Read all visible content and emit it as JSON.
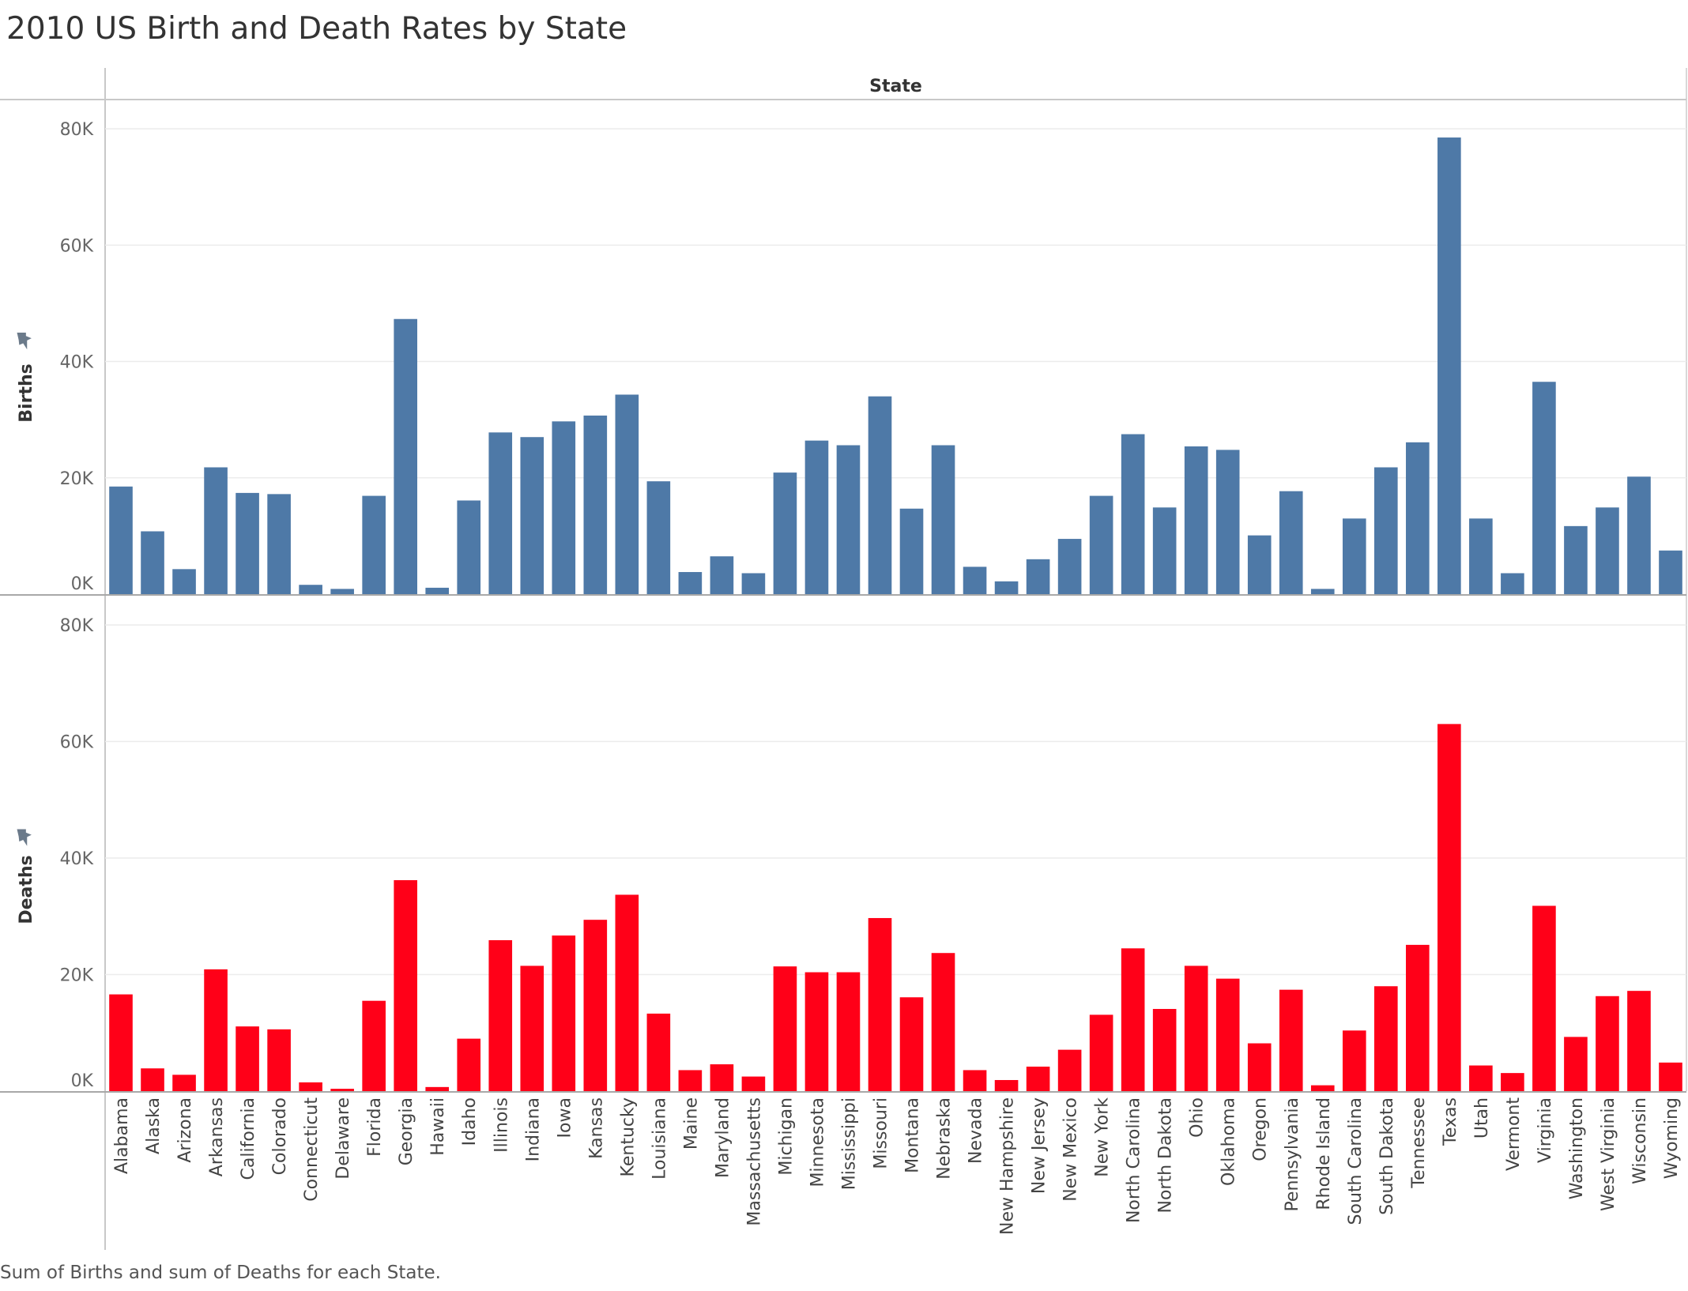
{
  "title": "2010 US Birth and Death Rates by State",
  "caption": "Sum of Births and sum of Deaths for each State.",
  "colors": {
    "births": "#4e79a7",
    "deaths": "#ff0018",
    "pin": "#6b7a8a"
  },
  "icons": {
    "pin": "pin-icon"
  },
  "chart_data": {
    "type": "bar",
    "header": "State",
    "categories": [
      "Alabama",
      "Alaska",
      "Arizona",
      "Arkansas",
      "California",
      "Colorado",
      "Connecticut",
      "Delaware",
      "Florida",
      "Georgia",
      "Hawaii",
      "Idaho",
      "Illinois",
      "Indiana",
      "Iowa",
      "Kansas",
      "Kentucky",
      "Louisiana",
      "Maine",
      "Maryland",
      "Massachusetts",
      "Michigan",
      "Minnesota",
      "Mississippi",
      "Missouri",
      "Montana",
      "Nebraska",
      "Nevada",
      "New Hampshire",
      "New Jersey",
      "New Mexico",
      "New York",
      "North Carolina",
      "North Dakota",
      "Ohio",
      "Oklahoma",
      "Oregon",
      "Pennsylvania",
      "Rhode Island",
      "South Carolina",
      "South Dakota",
      "Tennessee",
      "Texas",
      "Utah",
      "Vermont",
      "Virginia",
      "Washington",
      "West Virginia",
      "Wisconsin",
      "Wyoming"
    ],
    "series": [
      {
        "name": "Births",
        "color": "#4e79a7",
        "values": [
          18500,
          10800,
          4300,
          21800,
          17400,
          17200,
          1600,
          900,
          16900,
          47300,
          1100,
          16100,
          27800,
          27000,
          29700,
          30700,
          34300,
          19400,
          3800,
          6500,
          3600,
          20900,
          26400,
          25600,
          34000,
          14700,
          25600,
          4700,
          2200,
          6000,
          9500,
          16900,
          27500,
          14900,
          25400,
          24800,
          10100,
          17700,
          900,
          13000,
          21800,
          26100,
          78500,
          13000,
          3600,
          36500,
          11700,
          14900,
          20200,
          7500
        ]
      },
      {
        "name": "Deaths",
        "color": "#ff0018",
        "values": [
          16600,
          3900,
          2800,
          20900,
          11100,
          10600,
          1500,
          400,
          15500,
          36200,
          700,
          9000,
          25900,
          21500,
          26700,
          29400,
          33700,
          13300,
          3600,
          4600,
          2500,
          21400,
          20400,
          20400,
          29700,
          16100,
          23700,
          3600,
          1900,
          4200,
          7100,
          13100,
          24500,
          14100,
          21500,
          19300,
          8200,
          17400,
          1000,
          10400,
          18000,
          25100,
          63000,
          4400,
          3100,
          31800,
          9300,
          16300,
          17200,
          4900
        ]
      }
    ],
    "ylabels": [
      "Births",
      "Deaths"
    ],
    "ylim": [
      0,
      80000
    ],
    "yticks": [
      0,
      20000,
      40000,
      60000,
      80000
    ],
    "ytick_labels": [
      "0K",
      "20K",
      "40K",
      "60K",
      "80K"
    ],
    "grid": true
  }
}
